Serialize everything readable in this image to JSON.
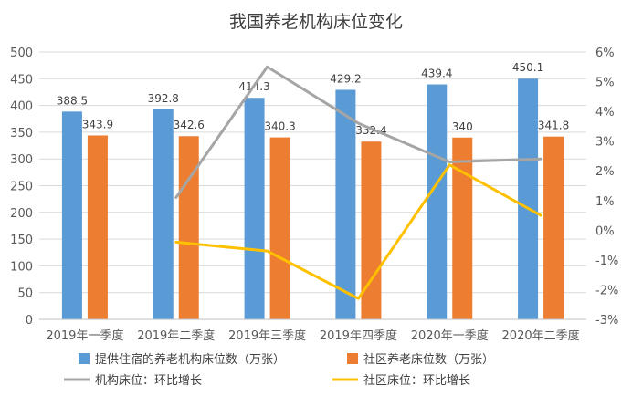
{
  "chart_data": {
    "type": "bar",
    "title": "我国养老机构床位变化",
    "categories": [
      "2019年一季度",
      "2019年二季度",
      "2019年三季度",
      "2019年四季度",
      "2020年一季度",
      "2020年二季度"
    ],
    "y_left": {
      "min": 0,
      "max": 500,
      "ticks": [
        0,
        50,
        100,
        150,
        200,
        250,
        300,
        350,
        400,
        450,
        500
      ]
    },
    "y_right": {
      "min": -3,
      "max": 6,
      "ticks": [
        "-3%",
        "-2%",
        "-1%",
        "0%",
        "1%",
        "2%",
        "3%",
        "4%",
        "5%",
        "6%"
      ],
      "tick_values": [
        -3,
        -2,
        -1,
        0,
        1,
        2,
        3,
        4,
        5,
        6
      ]
    },
    "grid": true,
    "legend_position": "bottom",
    "bar_series": [
      {
        "name": "提供住宿的养老机构床位数（万张）",
        "color": "#5B9BD5",
        "values": [
          388.5,
          392.8,
          414.3,
          429.2,
          439.4,
          450.1
        ],
        "labels": [
          "388.5",
          "392.8",
          "414.3",
          "429.2",
          "439.4",
          "450.1"
        ]
      },
      {
        "name": "社区养老床位数（万张）",
        "color": "#ED7D31",
        "values": [
          343.9,
          342.6,
          340.3,
          332.4,
          340,
          341.8
        ],
        "labels": [
          "343.9",
          "342.6",
          "340.3",
          "332.4",
          "340",
          "341.8"
        ]
      }
    ],
    "line_series": [
      {
        "name": "机构床位：环比增长",
        "color": "#A5A5A5",
        "axis": "right",
        "values": [
          null,
          1.1,
          5.5,
          3.6,
          2.3,
          2.4
        ]
      },
      {
        "name": "社区床位：环比增长",
        "color": "#FFC000",
        "axis": "right",
        "values": [
          null,
          -0.4,
          -0.7,
          -2.3,
          2.2,
          0.5
        ]
      }
    ]
  }
}
